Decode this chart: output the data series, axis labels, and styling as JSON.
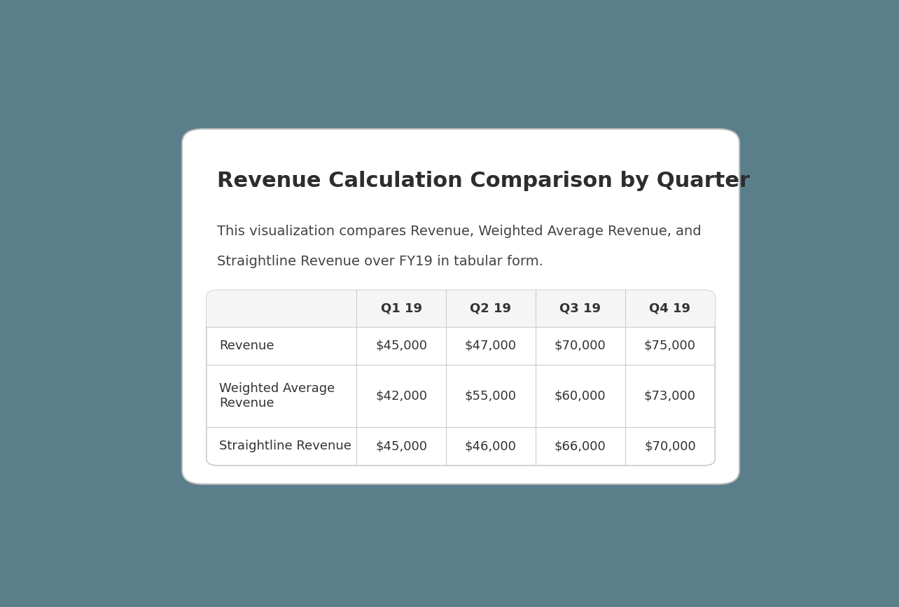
{
  "title": "Revenue Calculation Comparison by Quarter",
  "subtitle_line1": "This visualization compares Revenue, Weighted Average Revenue, and",
  "subtitle_line2": "Straightline Revenue over FY19 in tabular form.",
  "columns": [
    "",
    "Q1 19",
    "Q2 19",
    "Q3 19",
    "Q4 19"
  ],
  "rows": [
    [
      "Revenue",
      "$45,000",
      "$47,000",
      "$70,000",
      "$75,000"
    ],
    [
      "Weighted Average\nRevenue",
      "$42,000",
      "$55,000",
      "$60,000",
      "$73,000"
    ],
    [
      "Straightline Revenue",
      "$45,000",
      "$46,000",
      "$66,000",
      "$70,000"
    ]
  ],
  "bg_outer": "#5a7e8a",
  "bg_card": "#ffffff",
  "bg_header_row": "#f5f5f5",
  "text_title": "#2d2d2d",
  "text_body": "#444444",
  "text_table": "#333333",
  "border_color": "#cccccc",
  "card_border_color": "#bbbbbb",
  "title_fontsize": 22,
  "subtitle_fontsize": 14,
  "table_header_fontsize": 13,
  "table_body_fontsize": 13
}
